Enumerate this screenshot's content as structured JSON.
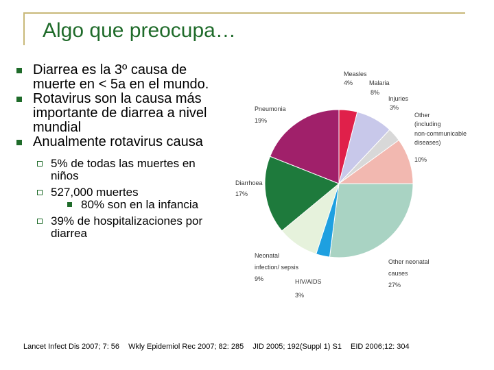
{
  "slide": {
    "title": "Algo que preocupa…",
    "bullets": [
      "Diarrea es la 3º causa de muerte  en < 5a en el mundo.",
      "Rotavirus son la causa más importante de diarrea a nivel mundial",
      "Anualmente rotavirus causa"
    ],
    "sub_bullets": [
      "5% de todas las muertes en niños",
      "527,000 muertes",
      "39% de hospitalizaciones por diarrea"
    ],
    "sub_sub_bullet": "80% son en la infancia",
    "references": [
      "Lancet Infect Dis 2007; 7: 56",
      "Wkly Epidemiol Rec 2007; 82: 285",
      "JID 2005; 192(Suppl 1) S1",
      "EID 2006;12: 304"
    ],
    "bullet_color": "#1f6b2a",
    "title_color": "#1f6b2a"
  },
  "chart_data": {
    "type": "pie",
    "slices": [
      {
        "name": "Measles",
        "pct_label": "4%",
        "value": 4,
        "color": "#e0204a"
      },
      {
        "name": "Malaria",
        "pct_label": "8%",
        "value": 8,
        "color": "#c8c8ea"
      },
      {
        "name": "Injuries",
        "pct_label": "3%",
        "value": 3,
        "color": "#d8d8d8"
      },
      {
        "name": "Other (including non-communicable diseases)",
        "pct_label": "10%",
        "value": 10,
        "color": "#f2b8b0"
      },
      {
        "name": "Other neonatal causes",
        "pct_label": "27%",
        "value": 27,
        "color": "#a9d3c3"
      },
      {
        "name": "HIV/AIDS",
        "pct_label": "3%",
        "value": 3,
        "color": "#1ea0e0"
      },
      {
        "name": "Neonatal infection/ sepsis",
        "pct_label": "9%",
        "value": 9,
        "color": "#e6f2dc"
      },
      {
        "name": "Diarrhoea",
        "pct_label": "17%",
        "value": 17,
        "color": "#1e7a3c"
      },
      {
        "name": "Pneumonia",
        "pct_label": "19%",
        "value": 19,
        "color": "#a0206a"
      }
    ]
  }
}
